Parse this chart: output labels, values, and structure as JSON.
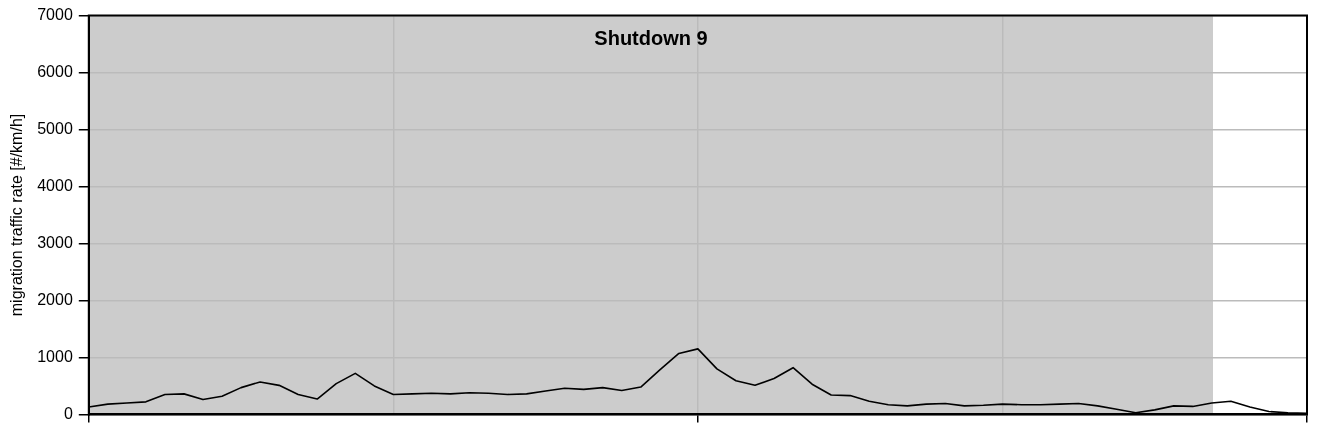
{
  "chart_data": {
    "type": "line",
    "ylabel": "migration traffic rate [#/km/h]",
    "annotations": [
      "Shutdown 9"
    ],
    "categories": [
      null,
      null,
      null,
      null,
      null,
      null,
      null,
      null,
      null,
      null,
      null,
      null,
      null,
      null,
      null,
      null,
      null,
      null,
      null,
      null,
      null,
      null,
      null,
      null,
      null,
      null,
      null,
      null,
      null,
      null,
      null,
      null,
      null,
      null,
      null,
      null,
      null,
      null,
      null,
      null,
      null,
      null,
      null,
      null,
      null,
      null,
      null,
      null,
      null,
      null,
      null,
      null,
      null,
      null,
      null,
      null,
      null,
      null,
      null,
      null,
      null,
      null,
      null,
      null,
      null
    ],
    "series": [
      {
        "color": "#000000",
        "values": [
          130,
          180,
          200,
          220,
          350,
          360,
          260,
          320,
          470,
          570,
          510,
          350,
          270,
          540,
          720,
          500,
          350,
          360,
          370,
          360,
          380,
          370,
          350,
          360,
          410,
          460,
          440,
          470,
          420,
          480,
          780,
          1070,
          1150,
          800,
          590,
          510,
          630,
          820,
          530,
          340,
          330,
          230,
          170,
          150,
          180,
          190,
          150,
          160,
          180,
          170,
          170,
          180,
          190,
          150,
          90,
          30,
          80,
          150,
          140,
          200,
          230,
          130,
          50,
          30,
          20
        ]
      }
    ],
    "ylim": [
      0,
      7000
    ],
    "yticks": [
      0,
      1000,
      2000,
      3000,
      4000,
      5000,
      6000,
      7000
    ],
    "tick_labels": "y",
    "grid": true,
    "marker": "none",
    "line_style": "solid",
    "legend": false
  }
}
